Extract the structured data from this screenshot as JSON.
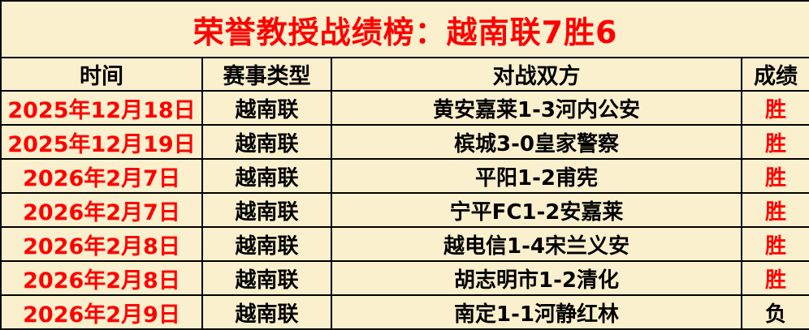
{
  "title": "荣誉教授战绩榜：越南联7胜6",
  "table": {
    "headers": {
      "time": "时间",
      "league_type": "赛事类型",
      "matchup": "对战双方",
      "result": "成绩"
    },
    "rows": [
      {
        "date": "2025年12月18日",
        "league": "越南联",
        "match": "黄安嘉莱1-3河内公安",
        "result": "胜"
      },
      {
        "date": "2025年12月19日",
        "league": "越南联",
        "match": "槟城3-0皇家警察",
        "result": "胜"
      },
      {
        "date": "2026年2月7日",
        "league": "越南联",
        "match": "平阳1-2甫宪",
        "result": "胜"
      },
      {
        "date": "2026年2月7日",
        "league": "越南联",
        "match": "宁平FC1-2安嘉莱",
        "result": "胜"
      },
      {
        "date": "2026年2月8日",
        "league": "越南联",
        "match": "越电信1-4宋兰义安",
        "result": "胜"
      },
      {
        "date": "2026年2月8日",
        "league": "越南联",
        "match": "胡志明市1-2清化",
        "result": "胜"
      },
      {
        "date": "2026年2月9日",
        "league": "越南联",
        "match": "南定1-1河静红林",
        "result": "负"
      }
    ]
  },
  "colors": {
    "background": "#FBF0CD",
    "red_text": "#FF0000",
    "black_text": "#000000",
    "border": "#000000",
    "win_color": "#FF0000",
    "loss_color": "#000000"
  }
}
